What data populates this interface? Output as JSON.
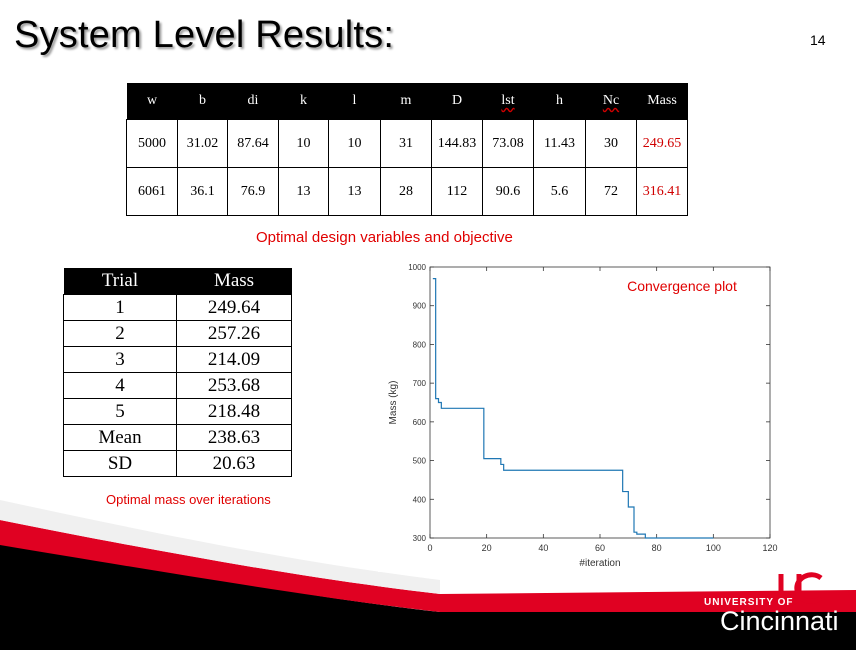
{
  "slide": {
    "title": "System Level Results:",
    "number": "14"
  },
  "design_table": {
    "headers": [
      "w",
      "b",
      "di",
      "k",
      "l",
      "m",
      "D",
      "lst",
      "h",
      "Nc",
      "Mass"
    ],
    "rows": [
      [
        "5000",
        "31.02",
        "87.64",
        "10",
        "10",
        "31",
        "144.83",
        "73.08",
        "11.43",
        "30",
        "249.65"
      ],
      [
        "6061",
        "36.1",
        "76.9",
        "13",
        "13",
        "28",
        "112",
        "90.6",
        "5.6",
        "72",
        "316.41"
      ]
    ],
    "caption": "Optimal design variables and objective"
  },
  "trial_table": {
    "headers": [
      "Trial",
      "Mass"
    ],
    "rows": [
      [
        "1",
        "249.64"
      ],
      [
        "2",
        "257.26"
      ],
      [
        "3",
        "214.09"
      ],
      [
        "4",
        "253.68"
      ],
      [
        "5",
        "218.48"
      ],
      [
        "Mean",
        "238.63"
      ],
      [
        "SD",
        "20.63"
      ]
    ],
    "caption": "Optimal mass over iterations"
  },
  "logo": {
    "university": "UNIVERSITY OF",
    "city": "Cincinnati"
  },
  "colors": {
    "accent_red": "#e00000",
    "brand_red": "#e00122",
    "line_blue": "#1f77b4"
  },
  "chart_data": {
    "type": "line",
    "title": "Convergence plot",
    "xlabel": "#iteration",
    "ylabel": "Mass (kg)",
    "xlim": [
      0,
      120
    ],
    "ylim": [
      300,
      1000
    ],
    "xticks": [
      0,
      20,
      40,
      60,
      80,
      100,
      120
    ],
    "yticks": [
      300,
      400,
      500,
      600,
      700,
      800,
      900,
      1000
    ],
    "grid": false,
    "series": [
      {
        "x": [
          1,
          2,
          2,
          3,
          3,
          4,
          4,
          19,
          19,
          25,
          25,
          26,
          26,
          68,
          68,
          70,
          70,
          72,
          72,
          73,
          73,
          76,
          76,
          100
        ],
        "y": [
          970,
          970,
          660,
          660,
          650,
          650,
          635,
          635,
          505,
          505,
          490,
          490,
          475,
          475,
          420,
          420,
          380,
          380,
          315,
          315,
          310,
          310,
          300,
          300
        ]
      }
    ]
  }
}
